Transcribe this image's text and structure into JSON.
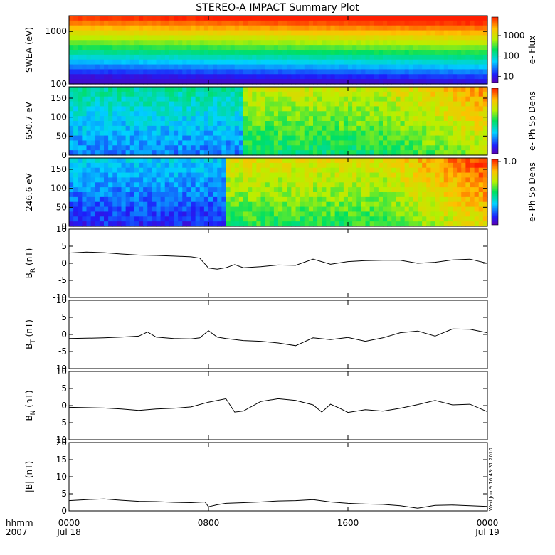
{
  "title": "STEREO-A IMPACT Summary Plot",
  "footer": {
    "axis_unit_label": "hhmm",
    "year_label": "2007",
    "stamp": "Wed Jun  9 16:43:31 2010"
  },
  "colors": {
    "axis": "#000000",
    "line": "#000000",
    "background": "#ffffff"
  },
  "chart_data": [
    {
      "type": "heatmap",
      "ylabel": "SWEA (eV)",
      "yscale": "log",
      "ylim": [
        100,
        2000
      ],
      "yticks": [
        100,
        1000
      ],
      "ytick_labels": [
        "100",
        "1000"
      ],
      "colorbar_label": "e- Flux",
      "colorbar_ticks": [
        10,
        100,
        1000
      ],
      "colorbar_tick_labels": [
        "10",
        "100",
        "1000"
      ],
      "colorbar_scale": "log"
    },
    {
      "type": "heatmap",
      "ylabel": "650.7 eV",
      "ylim": [
        0,
        180
      ],
      "yticks": [
        0,
        50,
        100,
        150
      ],
      "ytick_labels": [
        "0",
        "50",
        "100",
        "150"
      ],
      "colorbar_label": "e- Ph Sp Dens",
      "colorbar_ticks": [],
      "colorbar_tick_labels": []
    },
    {
      "type": "heatmap",
      "ylabel": "246.6 eV",
      "ylim": [
        0,
        180
      ],
      "yticks": [
        0,
        50,
        100,
        150
      ],
      "ytick_labels": [
        "0",
        "50",
        "100",
        "150"
      ],
      "colorbar_label": "e- Ph Sp Dens",
      "colorbar_ticks": [
        1.0
      ],
      "colorbar_tick_labels": [
        "1.0"
      ]
    },
    {
      "type": "line",
      "ylabel_main": "B",
      "ylabel_sub": "R",
      "ylabel_unit": " (nT)",
      "ylim": [
        -10,
        10
      ],
      "yticks": [
        -10,
        -5,
        0,
        5,
        10
      ],
      "ytick_labels": [
        "-10",
        "-5",
        "0",
        "5",
        "10"
      ],
      "x": [
        0,
        1,
        2,
        3,
        4,
        5,
        6,
        7,
        7.5,
        8,
        8.5,
        9,
        9.5,
        10,
        11,
        12,
        13,
        14,
        15,
        16,
        17,
        18,
        19,
        20,
        21,
        22,
        23,
        24
      ],
      "y": [
        3,
        3.3,
        3.1,
        2.7,
        2.4,
        2.3,
        2.1,
        1.9,
        1.5,
        -1.4,
        -1.7,
        -1.3,
        -0.4,
        -1.3,
        -1.0,
        -0.5,
        -0.6,
        1.2,
        -0.3,
        0.5,
        0.8,
        0.9,
        0.9,
        0.0,
        0.3,
        1.0,
        1.2,
        0.0
      ]
    },
    {
      "type": "line",
      "ylabel_main": "B",
      "ylabel_sub": "T",
      "ylabel_unit": " (nT)",
      "ylim": [
        -10,
        10
      ],
      "yticks": [
        -10,
        -5,
        0,
        5,
        10
      ],
      "ytick_labels": [
        "-10",
        "-5",
        "0",
        "5",
        "10"
      ],
      "x": [
        0,
        1,
        2,
        3,
        4,
        4.5,
        5,
        6,
        7,
        7.5,
        8,
        8.5,
        9,
        10,
        11,
        12,
        13,
        14,
        15,
        16,
        17,
        18,
        19,
        20,
        21,
        22,
        23,
        24
      ],
      "y": [
        -1.2,
        -1.1,
        -1.0,
        -0.8,
        -0.5,
        0.7,
        -0.8,
        -1.2,
        -1.3,
        -1.0,
        1.1,
        -0.8,
        -1.2,
        -1.8,
        -2.0,
        -2.5,
        -3.3,
        -1.0,
        -1.5,
        -0.9,
        -2.0,
        -1.0,
        0.5,
        1.0,
        -0.5,
        1.6,
        1.5,
        0.5
      ]
    },
    {
      "type": "line",
      "ylabel_main": "B",
      "ylabel_sub": "N",
      "ylabel_unit": " (nT)",
      "ylim": [
        -10,
        10
      ],
      "yticks": [
        -10,
        -5,
        0,
        5,
        10
      ],
      "ytick_labels": [
        "-10",
        "-5",
        "0",
        "5",
        "10"
      ],
      "x": [
        0,
        1,
        2,
        3,
        4,
        5,
        6,
        7,
        8,
        9,
        9.5,
        10,
        11,
        12,
        13,
        14,
        14.5,
        15,
        15.5,
        16,
        17,
        18,
        19,
        20,
        21,
        22,
        23,
        24
      ],
      "y": [
        -0.5,
        -0.6,
        -0.7,
        -1.0,
        -1.4,
        -1.0,
        -0.8,
        -0.4,
        1.0,
        2.0,
        -1.9,
        -1.6,
        1.2,
        2.0,
        1.5,
        0.2,
        -1.9,
        0.4,
        -0.7,
        -2.0,
        -1.2,
        -1.6,
        -0.8,
        0.3,
        1.5,
        0.2,
        0.4,
        -1.8
      ]
    },
    {
      "type": "line",
      "ylabel": "|B| (nT)",
      "ylim": [
        0,
        20
      ],
      "yticks": [
        0,
        5,
        10,
        15,
        20
      ],
      "ytick_labels": [
        "0",
        "5",
        "10",
        "15",
        "20"
      ],
      "x": [
        0,
        1,
        2,
        3,
        4,
        5,
        6,
        7,
        7.8,
        8,
        8.5,
        9,
        10,
        11,
        12,
        13,
        14,
        15,
        16,
        17,
        18,
        19,
        20,
        21,
        22,
        23,
        24
      ],
      "y": [
        3.0,
        3.3,
        3.5,
        3.1,
        2.8,
        2.7,
        2.5,
        2.4,
        2.6,
        1.2,
        1.8,
        2.2,
        2.4,
        2.6,
        2.9,
        3.0,
        3.3,
        2.6,
        2.2,
        2.0,
        1.9,
        1.5,
        0.8,
        1.6,
        1.7,
        1.5,
        1.3
      ]
    }
  ],
  "x_axis": {
    "range_hours": [
      0,
      24
    ],
    "ticks": [
      0,
      8,
      16,
      24
    ],
    "tick_labels": [
      "0000",
      "0800",
      "1600",
      "0000"
    ],
    "date_labels": [
      {
        "hour": 0,
        "text": "Jul 18"
      },
      {
        "hour": 24,
        "text": "Jul 19"
      }
    ]
  }
}
